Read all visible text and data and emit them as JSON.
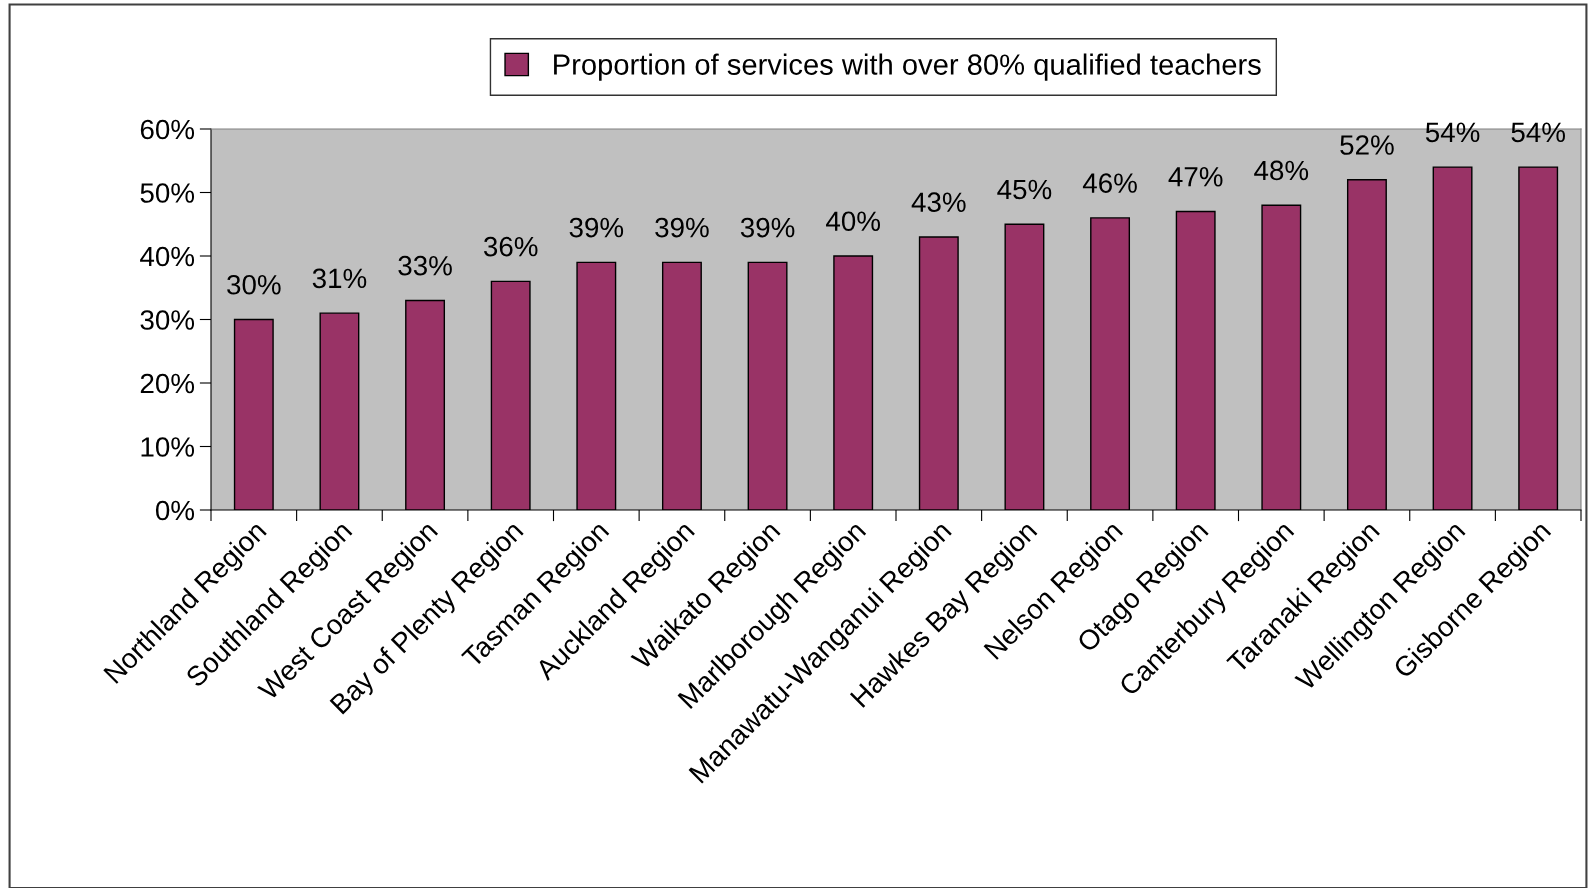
{
  "chart_data": {
    "type": "bar",
    "categories": [
      "Northland Region",
      "Southland Region",
      "West Coast Region",
      "Bay of Plenty Region",
      "Tasman Region",
      "Auckland Region",
      "Waikato Region",
      "Marlborough Region",
      "Manawatu-Wanganui Region",
      "Hawkes Bay Region",
      "Nelson Region",
      "Otago Region",
      "Canterbury Region",
      "Taranaki Region",
      "Wellington Region",
      "Gisborne Region"
    ],
    "series": [
      {
        "name": "Proportion of services with over 80% qualified teachers",
        "color": "#993366",
        "values": [
          30,
          31,
          33,
          36,
          39,
          39,
          39,
          40,
          43,
          45,
          46,
          47,
          48,
          52,
          54,
          54
        ],
        "value_labels": [
          "30%",
          "31%",
          "33%",
          "36%",
          "39%",
          "39%",
          "39%",
          "40%",
          "43%",
          "45%",
          "46%",
          "47%",
          "48%",
          "52%",
          "54%",
          "54%"
        ]
      }
    ],
    "ylim": [
      0,
      60
    ],
    "yticks": [
      {
        "value": 0,
        "label": "0%"
      },
      {
        "value": 10,
        "label": "10%"
      },
      {
        "value": 20,
        "label": "20%"
      },
      {
        "value": 30,
        "label": "30%"
      },
      {
        "value": 40,
        "label": "40%"
      },
      {
        "value": 50,
        "label": "50%"
      },
      {
        "value": 60,
        "label": "60%"
      }
    ],
    "grid": false,
    "legend": "top"
  }
}
